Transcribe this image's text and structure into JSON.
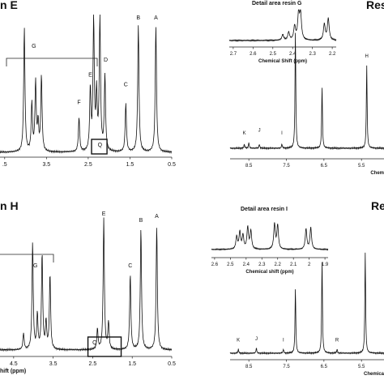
{
  "chart_data": [
    {
      "id": "panel-resin-e",
      "type": "line",
      "title": "n E",
      "xlabel": "",
      "xlim": [
        5.0,
        0.5
      ],
      "x_ticks": [
        4.5,
        3.5,
        2.5,
        1.5,
        0.5
      ],
      "x_tick_labels": [
        ".5",
        "3.5",
        "2.5",
        "1.5",
        "0.5"
      ],
      "series": [
        {
          "peaks": [
            {
              "x": 4.03,
              "h": 0.9
            },
            {
              "x": 3.85,
              "h": 0.35
            },
            {
              "x": 3.76,
              "h": 0.5
            },
            {
              "x": 3.7,
              "h": 0.2
            },
            {
              "x": 3.62,
              "h": 0.55
            },
            {
              "x": 2.72,
              "h": 0.25
            },
            {
              "x": 2.45,
              "h": 0.45
            },
            {
              "x": 2.37,
              "h": 0.95
            },
            {
              "x": 2.3,
              "h": 0.4
            },
            {
              "x": 2.22,
              "h": 0.97
            },
            {
              "x": 2.1,
              "h": 0.55
            },
            {
              "x": 1.6,
              "h": 0.35
            },
            {
              "x": 1.3,
              "h": 0.92
            },
            {
              "x": 0.88,
              "h": 0.92
            }
          ]
        }
      ],
      "labels": [
        {
          "text": "A",
          "x": 0.88,
          "h": 1.04
        },
        {
          "text": "B",
          "x": 1.3,
          "h": 1.0
        },
        {
          "text": "C",
          "x": 1.6,
          "h": 0.48
        },
        {
          "text": "D",
          "x": 2.08,
          "h": 0.66
        },
        {
          "text": "E",
          "x": 2.45,
          "h": 0.55
        },
        {
          "text": "F",
          "x": 2.72,
          "h": 0.35
        },
        {
          "text": "G",
          "x": 3.8,
          "h": 0.76
        },
        {
          "text": "Q",
          "x": 2.22,
          "h": 0.04
        }
      ]
    },
    {
      "id": "panel-detail-g",
      "type": "line",
      "title": "Detail area resin G",
      "xlabel": "Chemical Shift (ppm)",
      "xlim": [
        2.72,
        2.18
      ],
      "x_ticks": [
        2.7,
        2.6,
        2.5,
        2.4,
        2.3,
        2.2
      ],
      "x_tick_labels": [
        "2.7",
        "2.6",
        "2.5",
        "2.4",
        "2.3",
        "2.2"
      ],
      "series": [
        {
          "peaks": [
            {
              "x": 2.45,
              "h": 0.25
            },
            {
              "x": 2.42,
              "h": 0.35
            },
            {
              "x": 2.39,
              "h": 0.6
            },
            {
              "x": 2.37,
              "h": 1.1
            },
            {
              "x": 2.36,
              "h": 1.1
            },
            {
              "x": 2.24,
              "h": 0.7
            },
            {
              "x": 2.22,
              "h": 0.95
            }
          ]
        }
      ],
      "labels": []
    },
    {
      "id": "panel-resin-g",
      "type": "line",
      "title": "Res",
      "xlabel": "Chem",
      "xlim": [
        9.0,
        4.9
      ],
      "x_ticks": [
        8.5,
        7.5,
        6.5,
        5.5
      ],
      "x_tick_labels": [
        "8.5",
        "7.5",
        "6.5",
        "5.5"
      ],
      "series": [
        {
          "peaks": [
            {
              "x": 8.62,
              "h": 0.03
            },
            {
              "x": 8.5,
              "h": 0.04
            },
            {
              "x": 8.22,
              "h": 0.03
            },
            {
              "x": 7.62,
              "h": 0.03
            },
            {
              "x": 7.26,
              "h": 0.85
            },
            {
              "x": 6.55,
              "h": 0.45
            },
            {
              "x": 5.36,
              "h": 0.6
            }
          ]
        }
      ],
      "labels": [
        {
          "text": "K",
          "x": 8.62,
          "h": 0.1
        },
        {
          "text": "J",
          "x": 8.22,
          "h": 0.12
        },
        {
          "text": "I",
          "x": 7.62,
          "h": 0.1
        },
        {
          "text": "H",
          "x": 5.36,
          "h": 0.66
        }
      ]
    },
    {
      "id": "panel-resin-h",
      "type": "line",
      "title": "n H",
      "xlabel": "hift (ppm)",
      "xlim": [
        5.05,
        0.5
      ],
      "x_ticks": [
        4.5,
        3.5,
        2.5,
        1.5,
        0.5
      ],
      "x_tick_labels": [
        "4.5",
        "3.5",
        "2.5",
        "1.5",
        "0.5"
      ],
      "series": [
        {
          "peaks": [
            {
              "x": 4.25,
              "h": 0.12
            },
            {
              "x": 4.02,
              "h": 0.78
            },
            {
              "x": 3.9,
              "h": 0.25
            },
            {
              "x": 3.78,
              "h": 0.7
            },
            {
              "x": 3.68,
              "h": 0.2
            },
            {
              "x": 3.58,
              "h": 0.55
            },
            {
              "x": 2.38,
              "h": 0.15
            },
            {
              "x": 2.22,
              "h": 0.95
            },
            {
              "x": 2.1,
              "h": 0.2
            },
            {
              "x": 1.55,
              "h": 0.55
            },
            {
              "x": 1.28,
              "h": 0.88
            },
            {
              "x": 0.88,
              "h": 0.9
            }
          ]
        }
      ],
      "labels": [
        {
          "text": "A",
          "x": 0.88,
          "h": 0.96
        },
        {
          "text": "B",
          "x": 1.28,
          "h": 0.93
        },
        {
          "text": "C",
          "x": 1.55,
          "h": 0.6
        },
        {
          "text": "E",
          "x": 2.22,
          "h": 1.0
        },
        {
          "text": "G",
          "x": 3.95,
          "h": 0.6
        },
        {
          "text": "Q",
          "x": 2.45,
          "h": 0.04
        }
      ]
    },
    {
      "id": "panel-detail-i",
      "type": "line",
      "title": "Detail area resin I",
      "xlabel": "Chemical shift (ppm)",
      "xlim": [
        2.62,
        1.88
      ],
      "x_ticks": [
        2.6,
        2.5,
        2.4,
        2.3,
        2.2,
        2.1,
        2.0,
        1.9
      ],
      "x_tick_labels": [
        "2.6",
        "2.5",
        "2.4",
        "2.3",
        "2.2",
        "2.1",
        "2",
        "1.9"
      ],
      "series": [
        {
          "peaks": [
            {
              "x": 2.46,
              "h": 0.55
            },
            {
              "x": 2.44,
              "h": 0.75
            },
            {
              "x": 2.42,
              "h": 0.6
            },
            {
              "x": 2.39,
              "h": 0.95
            },
            {
              "x": 2.37,
              "h": 0.8
            },
            {
              "x": 2.22,
              "h": 1.1
            },
            {
              "x": 2.2,
              "h": 1.05
            },
            {
              "x": 2.02,
              "h": 0.9
            },
            {
              "x": 1.99,
              "h": 0.95
            }
          ]
        }
      ],
      "labels": []
    },
    {
      "id": "panel-resin-i",
      "type": "line",
      "title": "Re",
      "xlabel": "Chemica",
      "xlim": [
        9.0,
        4.9
      ],
      "x_ticks": [
        8.5,
        7.5,
        6.5,
        5.5
      ],
      "x_tick_labels": [
        "8.5",
        "7.5",
        "6.5",
        "5.5"
      ],
      "series": [
        {
          "peaks": [
            {
              "x": 8.78,
              "h": 0.03
            },
            {
              "x": 8.3,
              "h": 0.04
            },
            {
              "x": 7.58,
              "h": 0.03
            },
            {
              "x": 7.26,
              "h": 0.5
            },
            {
              "x": 6.55,
              "h": 0.72
            },
            {
              "x": 6.15,
              "h": 0.03
            },
            {
              "x": 5.4,
              "h": 0.78
            }
          ]
        }
      ],
      "labels": [
        {
          "text": "K",
          "x": 8.78,
          "h": 0.09
        },
        {
          "text": "J",
          "x": 8.3,
          "h": 0.1
        },
        {
          "text": "I",
          "x": 7.58,
          "h": 0.09
        },
        {
          "text": "R",
          "x": 6.15,
          "h": 0.09
        }
      ]
    }
  ]
}
